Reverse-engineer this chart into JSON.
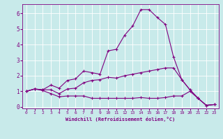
{
  "title": "",
  "xlabel": "Windchill (Refroidissement éolien,°C)",
  "ylabel": "",
  "background_color": "#c8eaea",
  "line_color": "#800080",
  "grid_color": "#ffffff",
  "xlim": [
    -0.5,
    23.5
  ],
  "ylim": [
    -0.1,
    6.6
  ],
  "xticks": [
    0,
    1,
    2,
    3,
    4,
    5,
    6,
    7,
    8,
    9,
    10,
    11,
    12,
    13,
    14,
    15,
    16,
    17,
    18,
    19,
    20,
    21,
    22,
    23
  ],
  "yticks": [
    0,
    1,
    2,
    3,
    4,
    5,
    6
  ],
  "series": [
    [
      1.0,
      1.15,
      1.1,
      1.4,
      1.2,
      1.7,
      1.8,
      2.3,
      2.2,
      2.1,
      3.6,
      3.7,
      4.6,
      5.2,
      6.25,
      6.25,
      5.75,
      5.3,
      3.2,
      1.75,
      1.1,
      0.55,
      0.1,
      0.15
    ],
    [
      1.0,
      1.15,
      1.1,
      1.1,
      0.85,
      1.15,
      1.2,
      1.55,
      1.7,
      1.75,
      1.9,
      1.85,
      2.0,
      2.1,
      2.2,
      2.3,
      2.4,
      2.5,
      2.5,
      1.75,
      1.1,
      0.55,
      0.1,
      0.15
    ],
    [
      1.0,
      1.15,
      1.05,
      0.85,
      0.65,
      0.7,
      0.7,
      0.7,
      0.55,
      0.55,
      0.55,
      0.55,
      0.55,
      0.55,
      0.6,
      0.55,
      0.55,
      0.6,
      0.7,
      0.7,
      1.0,
      0.55,
      0.1,
      0.15
    ]
  ],
  "xlabel_fontsize": 5.0,
  "tick_fontsize_x": 4.5,
  "tick_fontsize_y": 5.5,
  "linewidth": 0.8,
  "markersize": 3.0
}
